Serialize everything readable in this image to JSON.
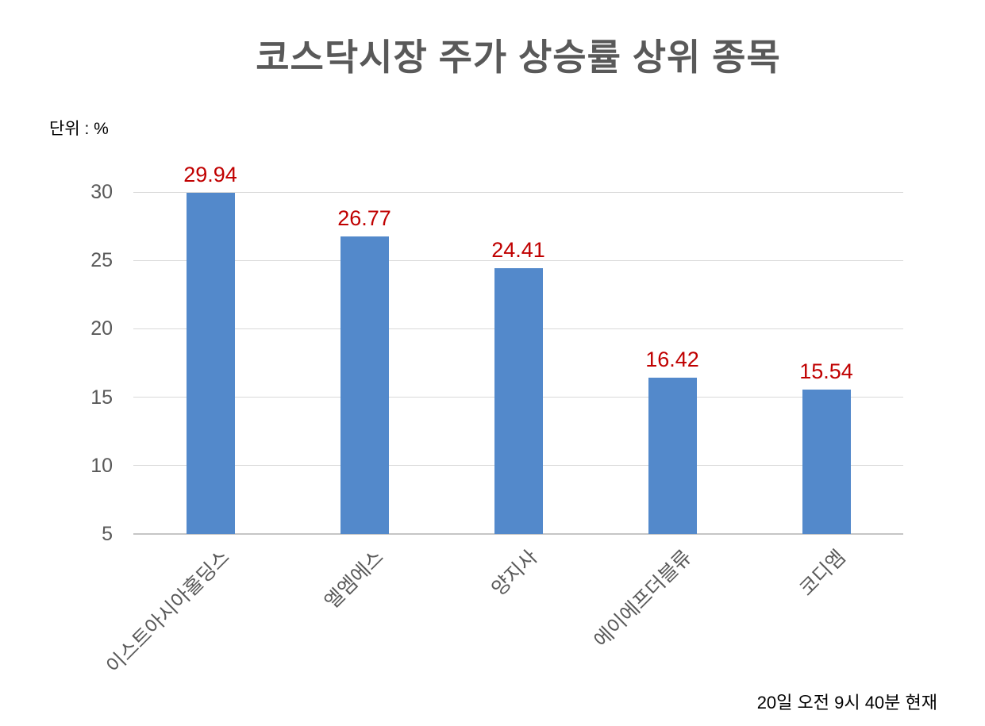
{
  "page": {
    "background_color": "#FFFFFF"
  },
  "header": {
    "unit_label": "단위 : %"
  },
  "footer": {
    "caption": "20일 오전 9시 40분 현재"
  },
  "chart_data": {
    "type": "bar",
    "title": "코스닥시장 주가 상승률 상위 종목",
    "categories": [
      "이스트아시아홀딩스",
      "엘엠에스",
      "양지사",
      "에이에프더블류",
      "코디엠"
    ],
    "values": [
      29.94,
      26.77,
      24.41,
      16.42,
      15.54
    ],
    "data_labels": [
      "29.94",
      "26.77",
      "24.41",
      "16.42",
      "15.54"
    ],
    "xlabel": "",
    "ylabel": "단위 : %",
    "unit": "%",
    "ylim": [
      5,
      31
    ],
    "yticks": [
      5,
      10,
      15,
      20,
      25,
      30
    ],
    "grid": true,
    "legend": false,
    "category_label_rotation_deg": 45,
    "colors": {
      "bar": "#5389CB",
      "data_label": "#C00000",
      "axis_text": "#595959",
      "title_text": "#595959",
      "gridline": "#D9D9D9",
      "axis_line": "#C6C6C6",
      "caption_text": "#000000",
      "unit_text": "#000000"
    }
  }
}
